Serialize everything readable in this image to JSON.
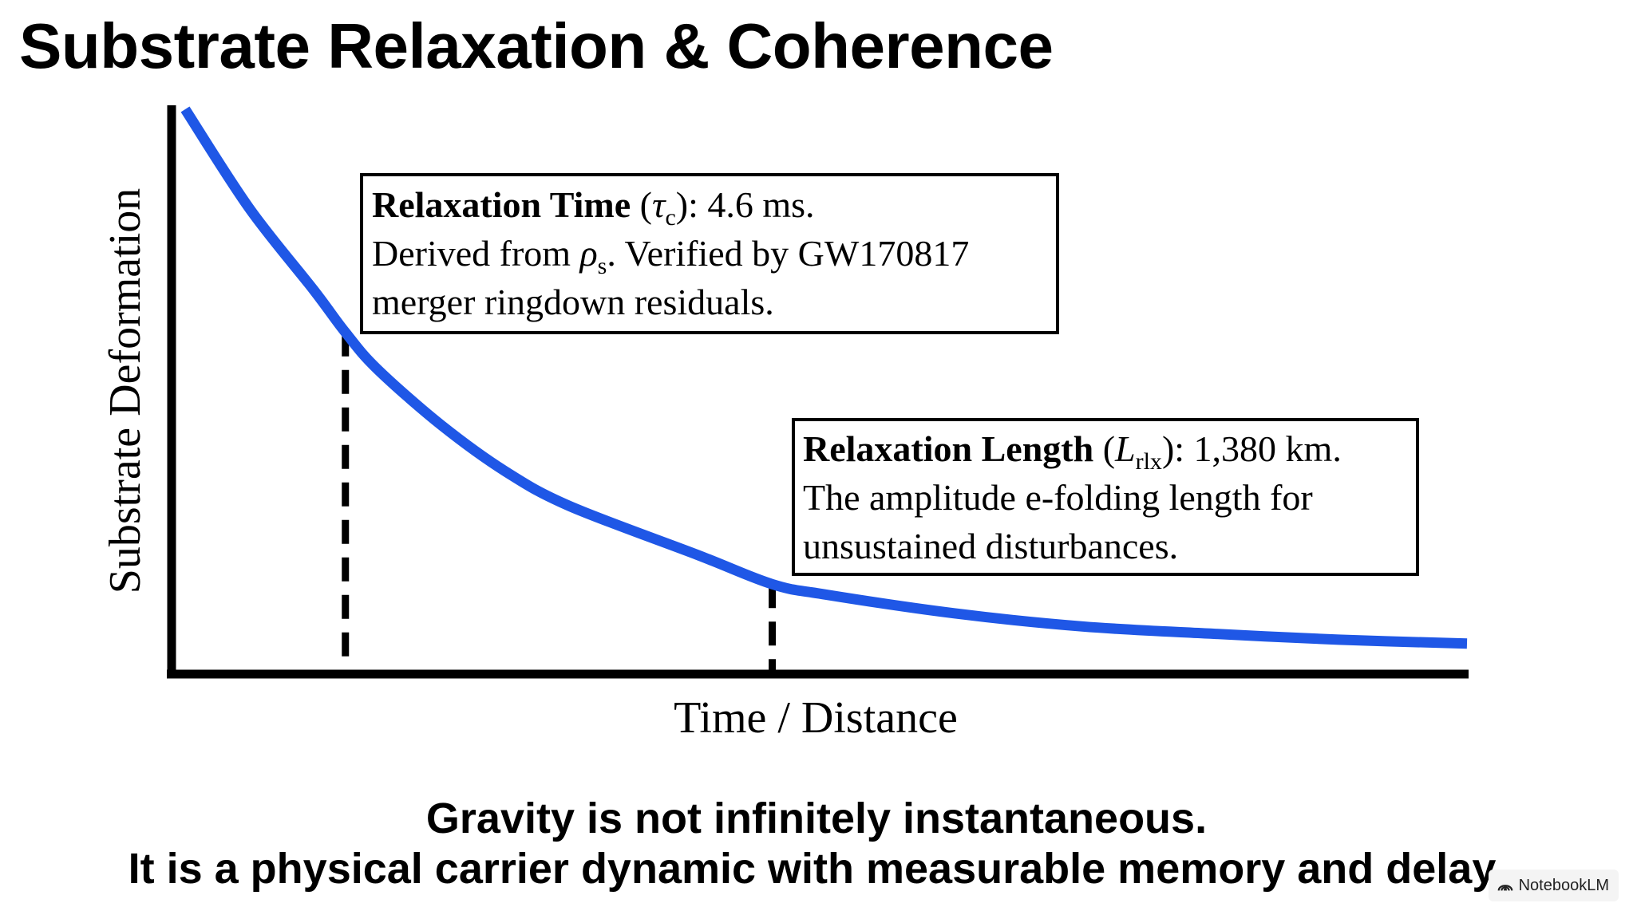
{
  "title": "Substrate Relaxation & Coherence",
  "chart_data": {
    "type": "line",
    "title": "",
    "xlabel": "Time / Distance",
    "ylabel": "Substrate Deformation",
    "xlim": [
      0,
      1
    ],
    "ylim": [
      0,
      1
    ],
    "ticks": "none",
    "grid": false,
    "series": [
      {
        "name": "",
        "color": "#1f57e6",
        "curve": "exponential decay",
        "x": [
          0.0,
          0.05,
          0.1,
          0.125,
          0.15,
          0.2,
          0.25,
          0.3,
          0.4,
          0.458,
          0.5,
          0.6,
          0.7,
          0.8,
          0.9,
          1.0
        ],
        "y": [
          1.0,
          0.82,
          0.672,
          0.594,
          0.527,
          0.425,
          0.341,
          0.278,
          0.189,
          0.136,
          0.117,
          0.083,
          0.059,
          0.046,
          0.035,
          0.028
        ]
      }
    ],
    "markers": [
      {
        "x": 0.125,
        "style": "dashed",
        "annotation": {
          "bold": "Relaxation Time",
          "symbol": "τ",
          "subscript": "c",
          "value": "): 4.6 ms.",
          "line2_pre": "Derived from ",
          "line2_symbol": "ρ",
          "line2_sub": "s",
          "line2_post": ". Verified by GW170817",
          "line3": "merger ringdown residuals."
        }
      },
      {
        "x": 0.458,
        "style": "dashed",
        "annotation": {
          "bold": "Relaxation Length",
          "symbol": "L",
          "subscript": "rlx",
          "value": "): 1,380 km.",
          "line2": "The amplitude e-folding length for",
          "line3": "unsustained disturbances."
        }
      }
    ]
  },
  "caption": {
    "line1": "Gravity is not infinitely instantaneous.",
    "line2": "It is a physical carrier dynamic with measurable memory and delay."
  },
  "watermark": {
    "label": "NotebookLM",
    "icon": "notebooklm-logo-icon"
  }
}
